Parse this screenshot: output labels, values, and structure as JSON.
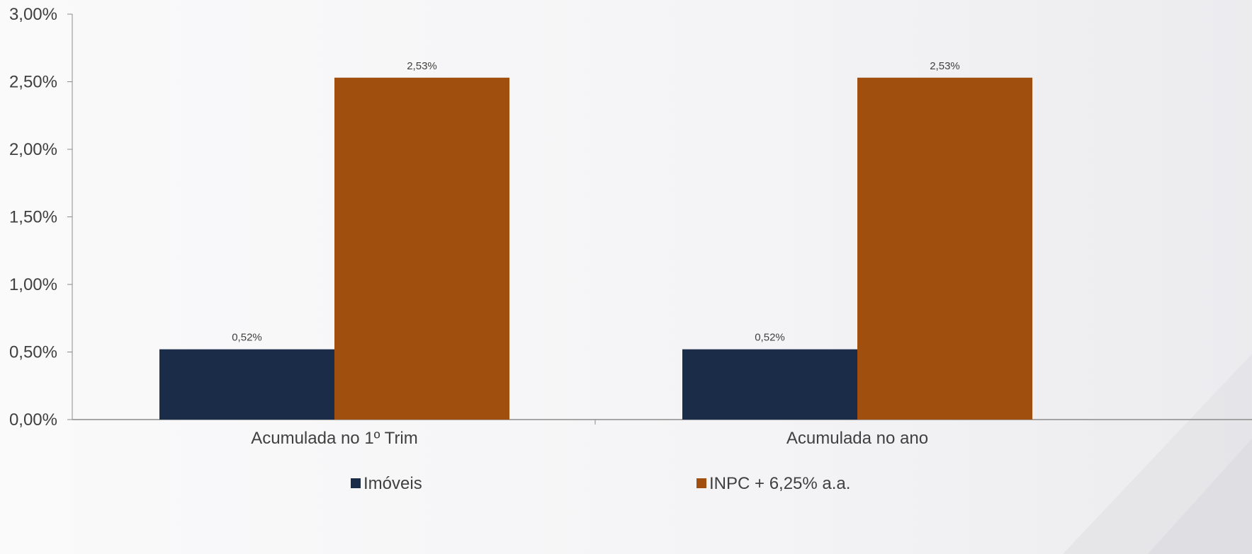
{
  "chart_data": {
    "type": "bar",
    "categories": [
      "Acumulada no 1º Trim",
      "Acumulada no ano"
    ],
    "series": [
      {
        "name": "Imóveis",
        "values": [
          0.52,
          0.52
        ],
        "labels": [
          "0,52%",
          "0,52%"
        ],
        "color": "#1a2c48"
      },
      {
        "name": "INPC + 6,25% a.a.",
        "values": [
          2.53,
          2.53
        ],
        "labels": [
          "2,53%",
          "2,53%"
        ],
        "color": "#a14f0e"
      }
    ],
    "yticks": [
      {
        "value": 0.0,
        "label": "0,00%"
      },
      {
        "value": 0.5,
        "label": "0,50%"
      },
      {
        "value": 1.0,
        "label": "1,00%"
      },
      {
        "value": 1.5,
        "label": "1,50%"
      },
      {
        "value": 2.0,
        "label": "2,00%"
      },
      {
        "value": 2.5,
        "label": "2,50%"
      },
      {
        "value": 3.0,
        "label": "3,00%"
      }
    ],
    "ylim": [
      0,
      3
    ],
    "title": "",
    "xlabel": "",
    "ylabel": "",
    "grid": false,
    "legend": "bottom"
  }
}
